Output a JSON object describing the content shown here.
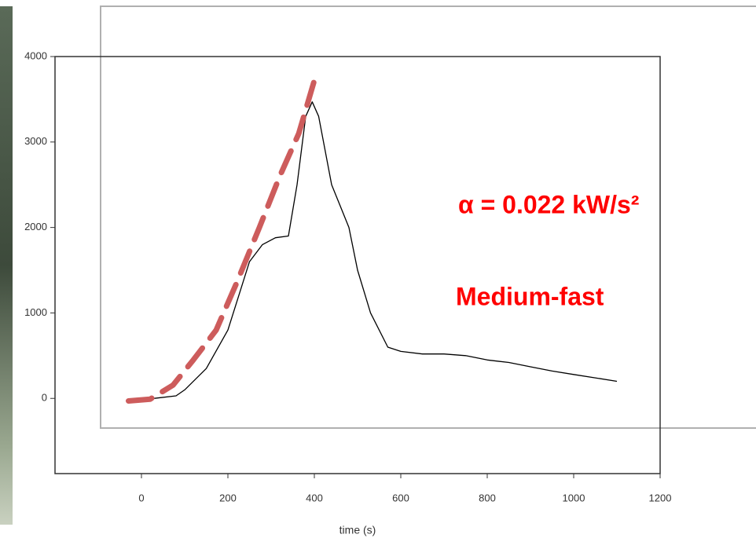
{
  "chart_data": {
    "type": "line",
    "xlabel": "time (s)",
    "xlim": [
      -200,
      1200
    ],
    "xticks": [
      0,
      200,
      400,
      600,
      800,
      1000,
      1200
    ],
    "ylim": [
      -880,
      4000
    ],
    "yticks": [
      0,
      1000,
      2000,
      3000,
      4000
    ],
    "series": [
      {
        "color": "#000000",
        "style": "solid",
        "x": [
          30,
          80,
          100,
          150,
          200,
          250,
          280,
          310,
          340,
          360,
          380,
          395,
          410,
          440,
          460,
          480,
          500,
          530,
          570,
          600,
          650,
          700,
          750,
          800,
          850,
          900,
          950,
          1000,
          1050,
          1100
        ],
        "values": [
          0,
          30,
          100,
          350,
          800,
          1600,
          1800,
          1880,
          1900,
          2500,
          3300,
          3470,
          3300,
          2500,
          2250,
          2000,
          1500,
          1000,
          600,
          550,
          520,
          520,
          500,
          450,
          420,
          370,
          320,
          280,
          240,
          200
        ]
      },
      {
        "color": "#cd5c5c",
        "style": "dashed",
        "x": [
          -30,
          20,
          73,
          120,
          173,
          220,
          273,
          320,
          364,
          404
        ],
        "values": [
          -30,
          -10,
          156,
          450,
          800,
          1350,
          2000,
          2600,
          3100,
          3790
        ]
      }
    ],
    "annotations": [
      "α = 0.022 kW/s²",
      "Medium-fast"
    ],
    "annotation_color": "#ff0000"
  }
}
